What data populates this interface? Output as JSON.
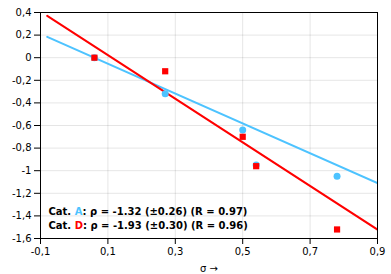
{
  "chart_data": {
    "type": "scatter",
    "xlabel": "σ",
    "series": [
      {
        "color": "#4DC3FF",
        "marker": "circle",
        "x": [
          0.06,
          0.27,
          0.5,
          0.54,
          0.78
        ],
        "values": [
          0.0,
          -0.32,
          -0.64,
          -0.95,
          -1.05
        ],
        "fit_x": [
          -0.08,
          0.9
        ],
        "fit_y": [
          0.1846,
          -1.109
        ]
      },
      {
        "color": "#FF0000",
        "marker": "square",
        "x": [
          0.06,
          0.27,
          0.5,
          0.54,
          0.78
        ],
        "values": [
          0.0,
          -0.12,
          -0.7,
          -0.96,
          -1.52
        ],
        "fit_x": [
          -0.08,
          0.9
        ],
        "fit_y": [
          0.3704,
          -1.521
        ]
      }
    ],
    "xlim": [
      -0.1,
      0.9
    ],
    "ylim": [
      -1.6,
      0.4
    ],
    "xticks": [
      {
        "value": -0.1,
        "label": "-0,1"
      },
      {
        "value": 0.1,
        "label": "0,1"
      },
      {
        "value": 0.3,
        "label": "0,3"
      },
      {
        "value": 0.5,
        "label": "0,5"
      },
      {
        "value": 0.7,
        "label": "0,7"
      },
      {
        "value": 0.9,
        "label": "0,9"
      }
    ],
    "yticks": [
      {
        "value": -1.6,
        "label": "-1,6"
      },
      {
        "value": -1.4,
        "label": "-1,4"
      },
      {
        "value": -1.2,
        "label": "-1,2"
      },
      -1,
      {
        "value": -0.8,
        "label": "-0,8"
      },
      {
        "value": -0.6,
        "label": "-0,6"
      },
      {
        "value": -0.4,
        "label": "-0,4"
      },
      {
        "value": -0.2,
        "label": "-0,2"
      },
      0,
      {
        "value": 0.2,
        "label": "0,2"
      },
      {
        "value": 0.4,
        "label": "0,4"
      }
    ],
    "grid": true,
    "annotations": [
      {
        "text": "Cat. A: ρ = -1.32 (±0.26) (R = 0.97)",
        "highlight": "A",
        "color": "#4DC3FF"
      },
      {
        "text": "Cat. D: ρ = -1.93 (±0.30) (R = 0.96)",
        "highlight": "D",
        "color": "#FF0000"
      }
    ]
  }
}
